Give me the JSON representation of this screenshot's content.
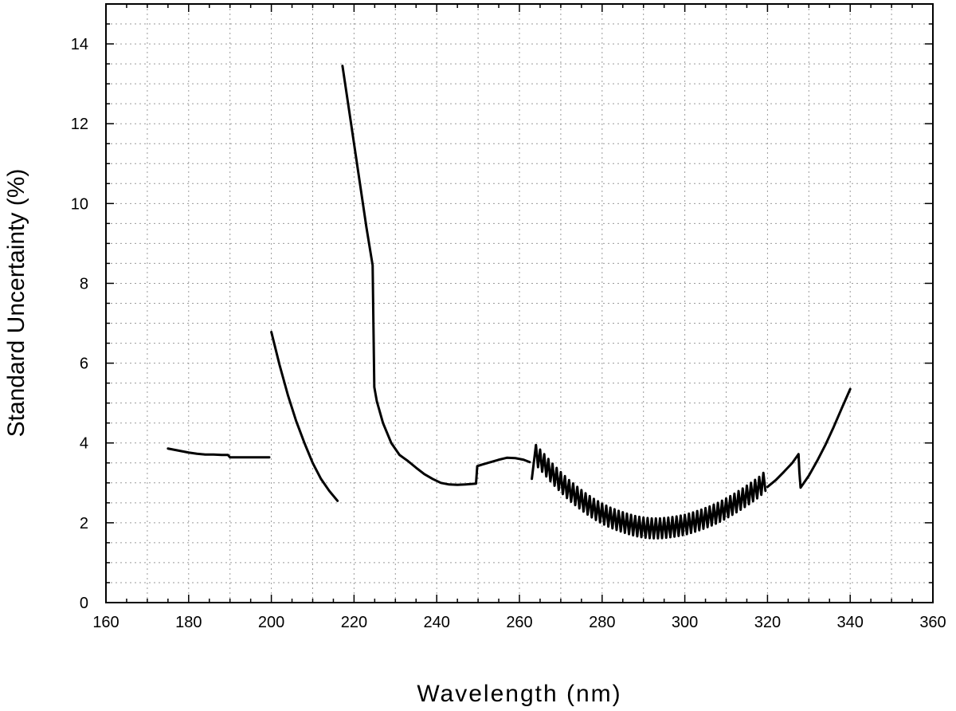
{
  "chart_data": {
    "type": "line",
    "title": "",
    "xlabel": "Wavelength (nm)",
    "ylabel": "Standard Uncertainty (%)",
    "xlim": [
      160,
      360
    ],
    "ylim": [
      0,
      15
    ],
    "x_ticks": [
      160,
      180,
      200,
      220,
      240,
      260,
      280,
      300,
      320,
      340,
      360
    ],
    "x_tick_labels": [
      "160",
      "180",
      "200",
      "220",
      "240",
      "260",
      "280",
      "300",
      "320",
      "340",
      "360"
    ],
    "y_ticks": [
      0,
      2,
      4,
      6,
      8,
      10,
      12,
      14
    ],
    "y_tick_labels": [
      "0",
      "2",
      "4",
      "6",
      "8",
      "10",
      "12",
      "14"
    ],
    "grid": true,
    "legend": "none",
    "line_color": "#000000",
    "series": [
      {
        "segments": [
          {
            "x": [
              175,
              177,
              180,
              182,
              184,
              186,
              188,
              189.5,
              190,
              191,
              193,
              195,
              197,
              199.5
            ],
            "y": [
              3.86,
              3.82,
              3.76,
              3.73,
              3.71,
              3.71,
              3.7,
              3.7,
              3.64,
              3.64,
              3.64,
              3.64,
              3.64,
              3.64
            ]
          },
          {
            "x": [
              200,
              202,
              204,
              206,
              208,
              210,
              212,
              214,
              216
            ],
            "y": [
              6.78,
              5.95,
              5.2,
              4.55,
              4.0,
              3.5,
              3.1,
              2.8,
              2.55
            ]
          },
          {
            "x": [
              217.2,
              219,
              221,
              223,
              224.5,
              224.7,
              224.9,
              225.5,
              227,
              229,
              231,
              233,
              235,
              237,
              239,
              241,
              243,
              245,
              247,
              249.5,
              249.8,
              251,
              253,
              255,
              257,
              259,
              261,
              262.5
            ],
            "y": [
              13.45,
              12.2,
              10.8,
              9.4,
              8.45,
              6.9,
              5.4,
              5.05,
              4.5,
              4.0,
              3.7,
              3.55,
              3.38,
              3.22,
              3.1,
              3.0,
              2.96,
              2.95,
              2.96,
              2.98,
              3.42,
              3.46,
              3.52,
              3.58,
              3.63,
              3.62,
              3.58,
              3.52
            ]
          },
          {
            "x": [
              263,
              264,
              266,
              268,
              270,
              272,
              274,
              276,
              278,
              280,
              282,
              284,
              286,
              288,
              290,
              292,
              294,
              296,
              298,
              300,
              302,
              304,
              306,
              308,
              310,
              312,
              314,
              316,
              318,
              319.5
            ],
            "y": [
              3.1,
              3.95,
              3.72,
              3.48,
              3.27,
              3.07,
              2.9,
              2.74,
              2.6,
              2.48,
              2.38,
              2.3,
              2.23,
              2.17,
              2.13,
              2.11,
              2.11,
              2.13,
              2.16,
              2.2,
              2.26,
              2.33,
              2.41,
              2.5,
              2.61,
              2.73,
              2.86,
              3.0,
              3.15,
              3.3
            ],
            "ripple_x_range": [
              264,
              319.5
            ],
            "ripple_depth": 0.5
          },
          {
            "x": [
              320,
              322,
              324,
              326,
              327.5,
              327.7,
              328,
              330,
              332,
              334,
              336,
              338,
              340
            ],
            "y": [
              2.9,
              3.07,
              3.28,
              3.5,
              3.72,
              3.28,
              2.88,
              3.18,
              3.55,
              3.95,
              4.4,
              4.88,
              5.35
            ]
          }
        ]
      }
    ]
  }
}
